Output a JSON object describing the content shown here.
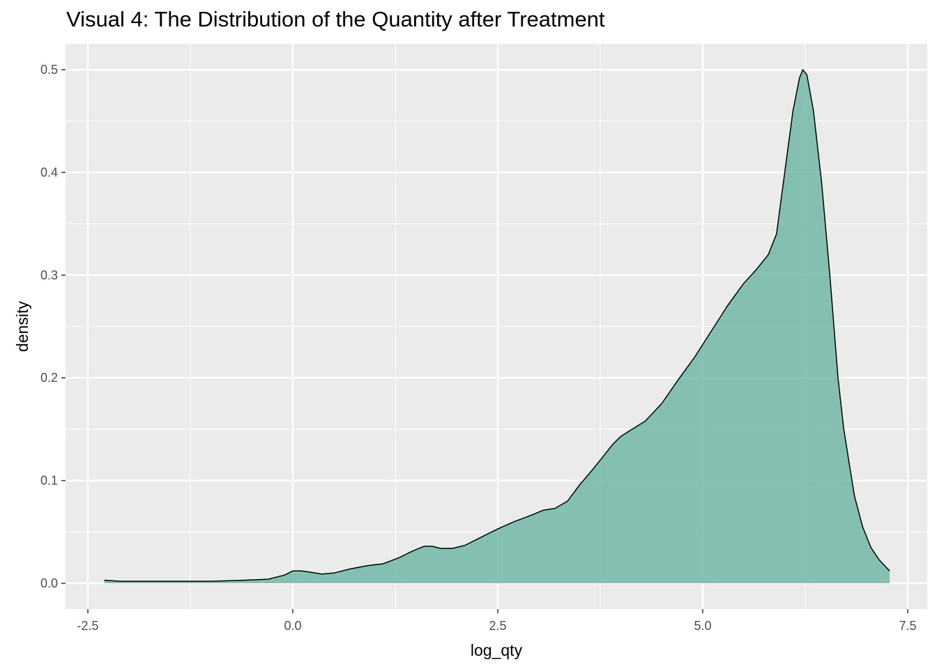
{
  "chart_data": {
    "type": "area",
    "title": "Visual 4: The Distribution of the Quantity after Treatment",
    "xlabel": "log_qty",
    "ylabel": "density",
    "xlim": [
      -2.5,
      7.5
    ],
    "ylim": [
      0,
      0.5
    ],
    "x_ticks": [
      -2.5,
      0,
      2.5,
      5,
      7.5
    ],
    "x_tick_labels": [
      "-2.5",
      "0.0",
      "2.5",
      "5.0",
      "7.5"
    ],
    "y_ticks": [
      0,
      0.1,
      0.2,
      0.3,
      0.4,
      0.5
    ],
    "y_tick_labels": [
      "0.0",
      "0.1",
      "0.2",
      "0.3",
      "0.4",
      "0.5"
    ],
    "grid": true,
    "background_color": "#EBEBEB",
    "fill_color": "#66B2A0",
    "fill_opacity": 0.78,
    "line_color": "#000000",
    "series": [
      {
        "x": [
          -2.3,
          -2.1,
          -1.9,
          -1.5,
          -1.0,
          -0.6,
          -0.3,
          -0.1,
          0.0,
          0.1,
          0.2,
          0.35,
          0.5,
          0.7,
          0.9,
          1.1,
          1.2,
          1.3,
          1.45,
          1.6,
          1.7,
          1.8,
          1.95,
          2.1,
          2.3,
          2.5,
          2.7,
          2.9,
          3.05,
          3.2,
          3.35,
          3.5,
          3.65,
          3.8,
          3.9,
          4.0,
          4.1,
          4.3,
          4.5,
          4.7,
          4.9,
          5.1,
          5.3,
          5.5,
          5.65,
          5.8,
          5.9,
          6.0,
          6.1,
          6.18,
          6.22,
          6.27,
          6.35,
          6.45,
          6.55,
          6.65,
          6.72,
          6.78,
          6.85,
          6.95,
          7.05,
          7.15,
          7.28
        ],
        "y": [
          0.003,
          0.002,
          0.002,
          0.002,
          0.002,
          0.003,
          0.004,
          0.008,
          0.012,
          0.012,
          0.011,
          0.009,
          0.01,
          0.014,
          0.017,
          0.019,
          0.022,
          0.025,
          0.031,
          0.036,
          0.036,
          0.034,
          0.034,
          0.037,
          0.045,
          0.053,
          0.06,
          0.066,
          0.071,
          0.073,
          0.08,
          0.096,
          0.11,
          0.125,
          0.135,
          0.143,
          0.148,
          0.158,
          0.175,
          0.198,
          0.22,
          0.245,
          0.27,
          0.292,
          0.305,
          0.32,
          0.34,
          0.4,
          0.46,
          0.492,
          0.5,
          0.495,
          0.46,
          0.39,
          0.3,
          0.2,
          0.15,
          0.12,
          0.085,
          0.055,
          0.035,
          0.023,
          0.012
        ]
      }
    ]
  }
}
